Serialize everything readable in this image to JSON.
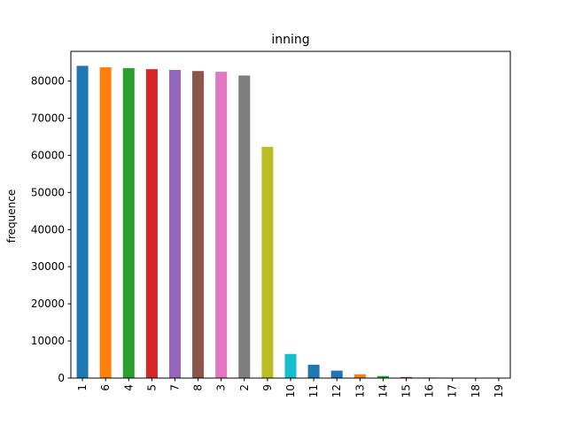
{
  "chart_data": {
    "type": "bar",
    "title": "inning",
    "xlabel": "",
    "ylabel": "frequence",
    "categories": [
      "1",
      "6",
      "4",
      "5",
      "7",
      "8",
      "3",
      "2",
      "9",
      "10",
      "11",
      "12",
      "13",
      "14",
      "15",
      "16",
      "17",
      "18",
      "19"
    ],
    "values": [
      84100,
      83700,
      83500,
      83200,
      83000,
      82700,
      82500,
      81500,
      62300,
      6500,
      3600,
      2000,
      1000,
      550,
      280,
      150,
      80,
      40,
      20
    ],
    "ylim": [
      0,
      88000
    ],
    "yticks": [
      0,
      10000,
      20000,
      30000,
      40000,
      50000,
      60000,
      70000,
      80000
    ],
    "colors": [
      "#1f77b4",
      "#ff7f0e",
      "#2ca02c",
      "#d62728",
      "#9467bd",
      "#8c564b",
      "#e377c2",
      "#7f7f7f",
      "#bcbd22",
      "#17becf",
      "#1f77b4",
      "#1f77b4",
      "#ff7f0e",
      "#2ca02c",
      "#d62728",
      "#9467bd",
      "#8c564b",
      "#e377c2",
      "#7f7f7f"
    ],
    "grid": false,
    "legend": "none"
  }
}
